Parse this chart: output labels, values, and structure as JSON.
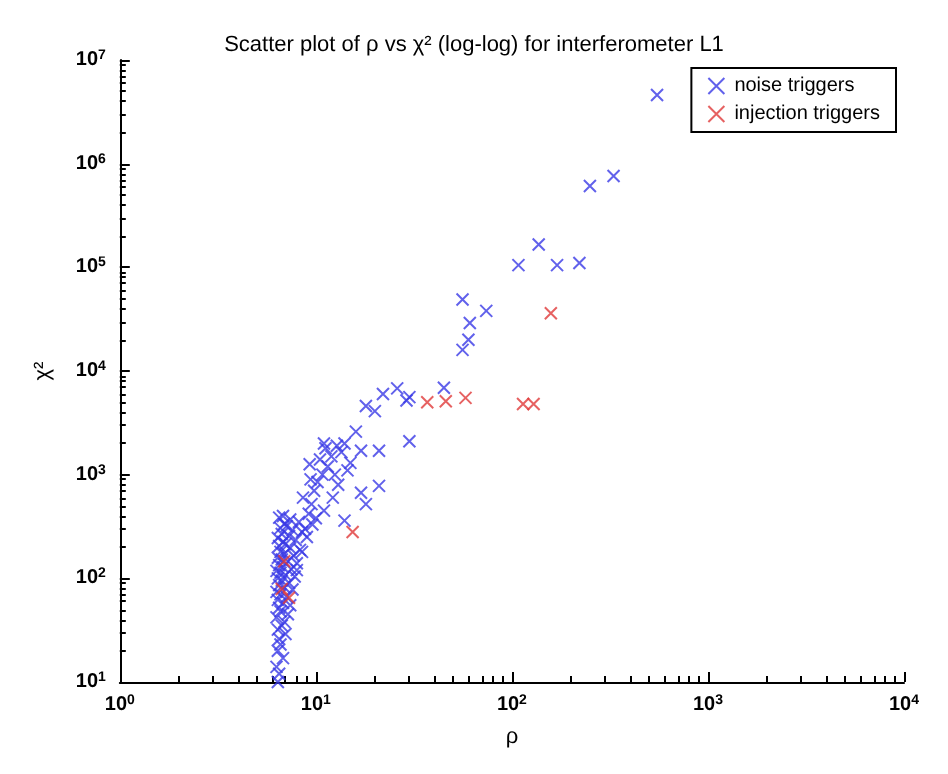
{
  "chart_data": {
    "type": "scatter",
    "title": "Scatter plot of ρ vs χ² (log-log) for interferometer L1",
    "xlabel": "ρ",
    "ylabel": "χ²",
    "log": "xy",
    "grid": false,
    "legend": "top right",
    "marker": "cross",
    "xlim": [
      1,
      10000
    ],
    "ylim": [
      10,
      10000000
    ],
    "xticks": [
      {
        "value": 1,
        "label": "10$^{0}$"
      },
      {
        "value": 10,
        "label": "10$^{1}$"
      },
      {
        "value": 100,
        "label": "10$^{2}$"
      },
      {
        "value": 1000,
        "label": "10$^{3}$"
      },
      {
        "value": 10000,
        "label": "10$^{4}$"
      }
    ],
    "yticks": [
      {
        "value": 10,
        "label": "10$^{1}$"
      },
      {
        "value": 100,
        "label": "10$^{2}$"
      },
      {
        "value": 1000,
        "label": "10$^{3}$"
      },
      {
        "value": 10000,
        "label": "10$^{4}$"
      },
      {
        "value": 100000,
        "label": "10$^{5}$"
      },
      {
        "value": 1000000,
        "label": "10$^{6}$"
      },
      {
        "value": 10000000,
        "label": "10$^{7}$"
      }
    ],
    "series": [
      {
        "name": "noise triggers",
        "color": "#3a3ae6",
        "x": [
          6.4,
          6.5,
          6.3,
          6.8,
          6.4,
          6.6,
          6.5,
          7.0,
          6.4,
          6.7,
          6.9,
          6.3,
          7.2,
          6.6,
          6.5,
          7.4,
          6.8,
          6.4,
          7.1,
          6.6,
          6.3,
          7.6,
          6.9,
          6.5,
          7.3,
          6.7,
          6.4,
          7.8,
          7.0,
          6.6,
          6.3,
          7.5,
          6.8,
          6.5,
          8.0,
          7.2,
          6.7,
          6.4,
          7.7,
          6.9,
          6.6,
          8.3,
          7.4,
          6.5,
          7.0,
          6.8,
          7.9,
          6.4,
          7.3,
          6.7,
          8.5,
          7.6,
          6.6,
          7.1,
          6.9,
          8.2,
          7.4,
          6.5,
          6.8,
          8.8,
          9.2,
          9.5,
          8.6,
          9.8,
          10.2,
          9.4,
          10.8,
          11.5,
          10.5,
          12.0,
          11.2,
          12.8,
          13.5,
          14.5,
          13.0,
          12.2,
          11.0,
          10.0,
          9.0,
          8.5,
          8.0,
          9.6,
          12.5,
          15,
          14,
          11,
          9.3,
          14,
          17,
          18,
          21,
          16,
          17,
          20,
          18,
          30,
          21,
          29,
          30,
          26,
          22,
          45,
          56,
          60,
          61,
          56,
          74,
          108,
          137,
          170,
          221,
          250,
          330,
          550
        ],
        "values": [
          10,
          12,
          14,
          17,
          20,
          23,
          26,
          29,
          32,
          35,
          38,
          42,
          45,
          48,
          52,
          55,
          58,
          62,
          66,
          70,
          74,
          78,
          82,
          86,
          90,
          95,
          100,
          104,
          108,
          113,
          118,
          122,
          128,
          134,
          140,
          146,
          152,
          158,
          165,
          172,
          180,
          188,
          196,
          205,
          214,
          224,
          234,
          245,
          256,
          268,
          280,
          292,
          305,
          320,
          335,
          350,
          370,
          385,
          400,
          300,
          420,
          520,
          600,
          700,
          850,
          900,
          1000,
          1200,
          1400,
          1500,
          1800,
          1900,
          1650,
          1100,
          800,
          600,
          450,
          380,
          250,
          180,
          120,
          330,
          1000,
          1300,
          2000,
          2000,
          1260,
          360,
          670,
          520,
          780,
          2600,
          1700,
          4100,
          4600,
          2100,
          1700,
          5200,
          5600,
          6800,
          6000,
          6900,
          16000,
          20000,
          29000,
          49000,
          38000,
          105000,
          166000,
          105000,
          110000,
          610000,
          760000,
          4600000
        ]
      },
      {
        "name": "injection triggers",
        "color": "#e03a3a",
        "x": [
          6.9,
          6.7,
          7.3,
          15.4,
          37,
          46,
          58,
          114,
          129,
          158
        ],
        "values": [
          146,
          79,
          65,
          280,
          5000,
          5100,
          5500,
          4800,
          4800,
          36000
        ]
      }
    ]
  }
}
